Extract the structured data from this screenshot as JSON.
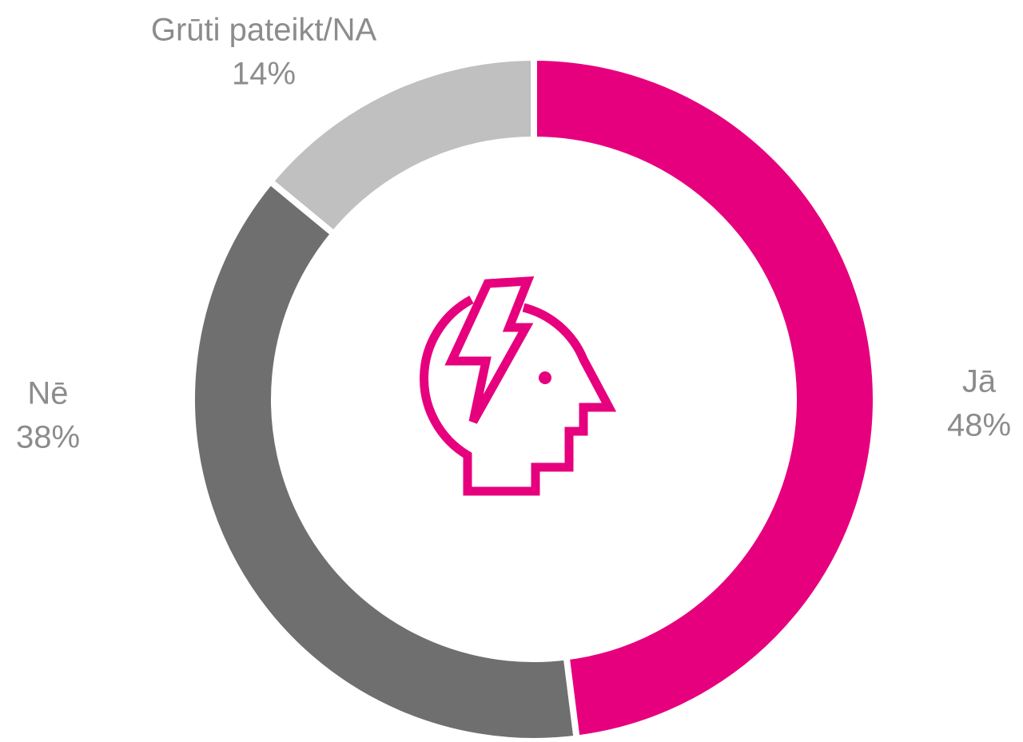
{
  "chart_data": {
    "type": "donut",
    "categories": [
      "Jā",
      "Nē",
      "Grūti pateikt/NA"
    ],
    "values": [
      48,
      38,
      14
    ],
    "value_labels": [
      "48%",
      "38%",
      "14%"
    ],
    "colors": [
      "#e6007e",
      "#6f6f6f",
      "#c0c0c0"
    ]
  }
}
